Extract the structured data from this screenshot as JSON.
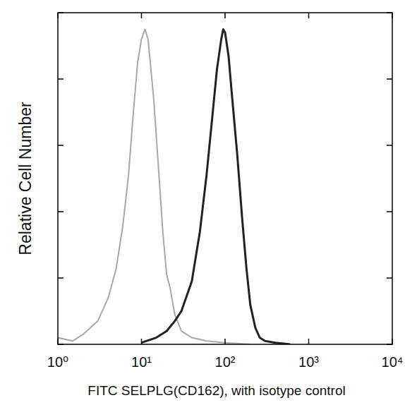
{
  "chart_data": {
    "type": "line",
    "log": "x",
    "tick_labels": "x",
    "xlabel": "FITC SELPLG(CD162), with isotype control",
    "ylabel": "Relative Cell Number",
    "xlim": [
      1,
      10000
    ],
    "ylim": [
      0,
      100
    ],
    "xticks": [
      {
        "value": 1,
        "label": "10⁰"
      },
      {
        "value": 10,
        "label": "10¹"
      },
      {
        "value": 100,
        "label": "10²"
      },
      {
        "value": 1000,
        "label": "10³"
      },
      {
        "value": 10000,
        "label": "10⁴"
      }
    ],
    "yticks": [
      0,
      20,
      40,
      60,
      80,
      100
    ],
    "series": [
      {
        "color": "#a8a8a8",
        "x": [
          1,
          1.5,
          2,
          3,
          4,
          5,
          6,
          7,
          8,
          9,
          10,
          11,
          12,
          14,
          16,
          18,
          20,
          22,
          25,
          30,
          40,
          60,
          100,
          200
        ],
        "values": [
          2,
          1,
          3,
          7,
          14,
          23,
          36,
          51,
          70,
          85,
          92,
          95,
          92,
          74,
          53,
          34,
          21,
          17,
          9,
          4,
          2,
          1,
          0.5,
          0
        ]
      },
      {
        "color": "#222222",
        "x": [
          10,
          15,
          20,
          25,
          30,
          40,
          50,
          60,
          70,
          80,
          90,
          95,
          100,
          110,
          120,
          140,
          160,
          180,
          200,
          230,
          260,
          300,
          400,
          600
        ],
        "values": [
          0.5,
          2,
          4,
          7,
          10,
          19,
          34,
          51,
          68,
          83,
          92,
          95,
          94,
          87,
          76,
          57,
          38,
          23,
          12,
          5,
          2,
          1,
          0.5,
          0
        ]
      }
    ]
  }
}
